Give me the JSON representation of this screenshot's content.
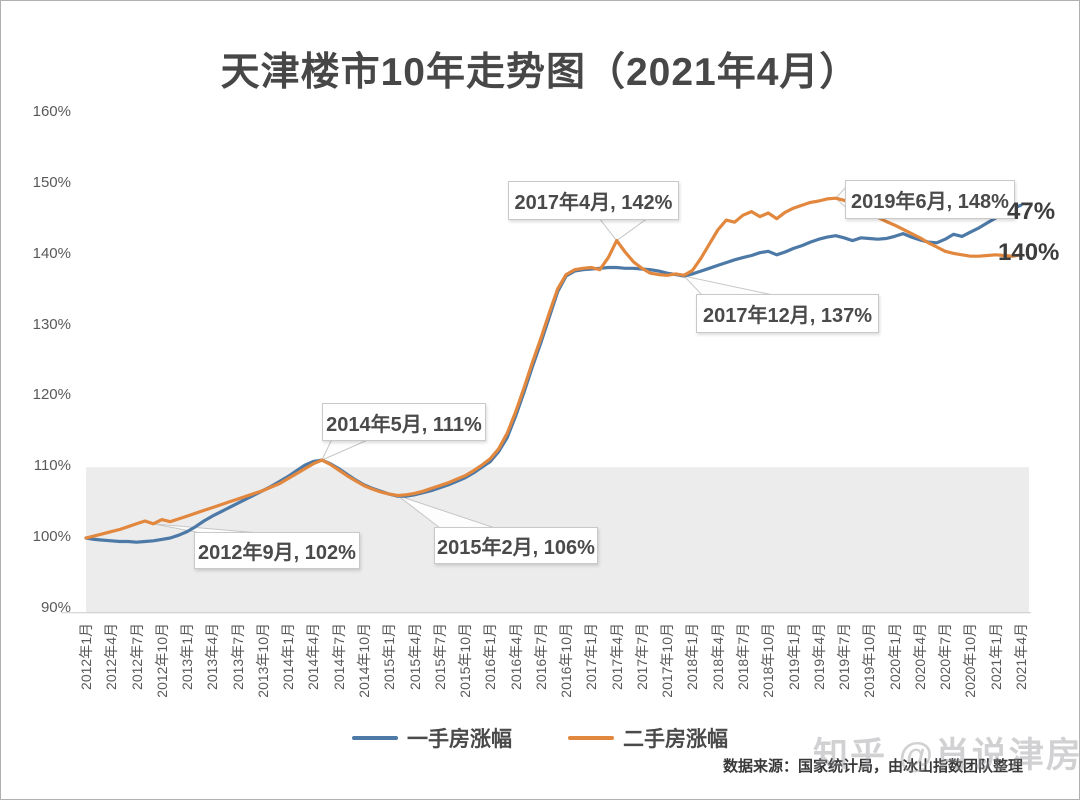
{
  "title": "天津楼市10年走势图（2021年4月）",
  "chart_data": {
    "type": "line",
    "title": "天津楼市10年走势图（2021年4月）",
    "xlabel": "",
    "ylabel": "",
    "ylim": [
      90,
      160
    ],
    "y_ticks": [
      90,
      100,
      110,
      120,
      130,
      140,
      150,
      160
    ],
    "grid": false,
    "legend_position": "bottom",
    "x_description": "monthly data from 2012年1月 to 2021年4月, ticks every 3 months",
    "x_tick_labels": [
      "2012年1月",
      "2012年4月",
      "2012年7月",
      "2012年10月",
      "2013年1月",
      "2013年4月",
      "2013年7月",
      "2013年10月",
      "2014年1月",
      "2014年4月",
      "2014年7月",
      "2014年10月",
      "2015年1月",
      "2015年4月",
      "2015年7月",
      "2015年10月",
      "2016年1月",
      "2016年4月",
      "2016年7月",
      "2016年10月",
      "2017年1月",
      "2017年4月",
      "2017年7月",
      "2017年10月",
      "2018年1月",
      "2018年4月",
      "2018年7月",
      "2018年10月",
      "2019年1月",
      "2019年4月",
      "2019年7月",
      "2019年10月",
      "2020年1月",
      "2020年4月",
      "2020年7月",
      "2020年10月",
      "2021年1月",
      "2021年4月"
    ],
    "series": [
      {
        "name": "一手房涨幅",
        "color": "#4d79a7",
        "values": [
          100.0,
          99.8,
          99.7,
          99.6,
          99.5,
          99.5,
          99.4,
          99.5,
          99.6,
          99.8,
          100.0,
          100.4,
          100.9,
          101.6,
          102.4,
          103.1,
          103.7,
          104.3,
          104.9,
          105.5,
          106.1,
          106.7,
          107.3,
          108.0,
          108.7,
          109.5,
          110.3,
          110.8,
          111.0,
          110.5,
          109.8,
          109.0,
          108.2,
          107.5,
          107.0,
          106.6,
          106.2,
          105.9,
          105.9,
          106.1,
          106.4,
          106.7,
          107.1,
          107.5,
          108.0,
          108.5,
          109.2,
          110.0,
          110.8,
          112.2,
          114.2,
          117.2,
          120.6,
          124.2,
          127.6,
          131.2,
          134.8,
          137.0,
          137.7,
          137.9,
          138.0,
          138.1,
          138.2,
          138.2,
          138.1,
          138.1,
          138.0,
          137.9,
          137.7,
          137.4,
          137.2,
          137.0,
          137.3,
          137.7,
          138.1,
          138.5,
          138.9,
          139.3,
          139.6,
          139.9,
          140.3,
          140.5,
          140.0,
          140.4,
          140.9,
          141.3,
          141.8,
          142.2,
          142.5,
          142.7,
          142.4,
          142.0,
          142.4,
          142.3,
          142.2,
          142.3,
          142.6,
          143.0,
          142.5,
          142.1,
          141.8,
          141.7,
          142.2,
          142.9,
          142.6,
          143.2,
          143.8,
          144.5,
          145.2,
          145.9,
          146.5,
          147.0
        ]
      },
      {
        "name": "二手房涨幅",
        "color": "#e2873e",
        "values": [
          100.0,
          100.3,
          100.6,
          100.9,
          101.2,
          101.6,
          102.0,
          102.4,
          102.0,
          102.6,
          102.3,
          102.7,
          103.1,
          103.5,
          103.9,
          104.3,
          104.7,
          105.1,
          105.5,
          105.9,
          106.3,
          106.7,
          107.2,
          107.7,
          108.4,
          109.1,
          109.8,
          110.5,
          111.0,
          110.4,
          109.6,
          108.8,
          108.1,
          107.4,
          106.9,
          106.5,
          106.2,
          106.0,
          106.1,
          106.3,
          106.6,
          107.0,
          107.4,
          107.8,
          108.3,
          108.8,
          109.5,
          110.3,
          111.2,
          112.6,
          114.8,
          117.8,
          121.2,
          124.8,
          128.2,
          131.8,
          135.2,
          137.2,
          137.9,
          138.1,
          138.2,
          137.9,
          139.6,
          142.0,
          140.4,
          139.0,
          138.1,
          137.4,
          137.2,
          137.1,
          137.3,
          137.1,
          137.8,
          139.5,
          141.5,
          143.5,
          144.9,
          144.6,
          145.6,
          146.1,
          145.4,
          145.9,
          145.1,
          146.0,
          146.6,
          147.0,
          147.4,
          147.6,
          147.9,
          148.0,
          147.7,
          147.1,
          146.4,
          145.9,
          145.3,
          144.7,
          144.2,
          143.6,
          143.0,
          142.4,
          141.7,
          141.1,
          140.5,
          140.2,
          140.0,
          139.8,
          139.8,
          139.9,
          140.0,
          139.9,
          139.8,
          140.0
        ]
      }
    ],
    "annotations": [
      {
        "label": "2012年9月, 102%",
        "month_index": 8,
        "value": 102
      },
      {
        "label": "2014年5月, 111%",
        "month_index": 28,
        "value": 111
      },
      {
        "label": "2015年2月, 106%",
        "month_index": 37,
        "value": 106
      },
      {
        "label": "2017年4月, 142%",
        "month_index": 63,
        "value": 142
      },
      {
        "label": "2017年12月, 137%",
        "month_index": 71,
        "value": 137
      },
      {
        "label": "2019年6月, 148%",
        "month_index": 89,
        "value": 148
      }
    ],
    "end_labels": [
      {
        "text": "47%",
        "series": "一手房涨幅"
      },
      {
        "text": "140%",
        "series": "二手房涨幅"
      }
    ]
  },
  "footer": {
    "source": "数据来源：国家统计局，由冰山指数团队整理",
    "watermark": "知乎 @肖说津房"
  }
}
